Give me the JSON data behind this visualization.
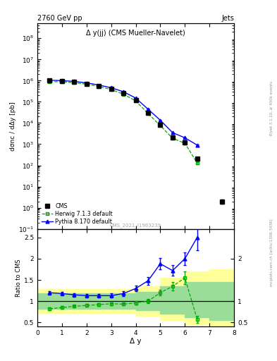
{
  "title_left": "2760 GeV pp",
  "title_right": "Jets",
  "plot_title": "Δ y(јј) (CMS Mueller-Navelet)",
  "xlabel": "Δ y",
  "ylabel_top": "dσnc / dΔy [pb]",
  "ylabel_bot": "Ratio to CMS",
  "watermark": "CMS_2021_I1963239",
  "rivet_text": "Rivet 3.1.10, ≥ 400k events",
  "arxiv_text": "mcplots.cern.ch [arXiv:1306.3436]",
  "cms_x": [
    0.5,
    1.0,
    1.5,
    2.0,
    2.5,
    3.0,
    3.5,
    4.0,
    4.5,
    5.0,
    5.5,
    6.0,
    6.5,
    7.5
  ],
  "cms_y": [
    1000000.0,
    950000.0,
    850000.0,
    700000.0,
    550000.0,
    400000.0,
    250000.0,
    120000.0,
    30000.0,
    8000.0,
    2000.0,
    1200.0,
    200.0,
    2.0
  ],
  "cms_yerr": [
    50000.0,
    40000.0,
    35000.0,
    30000.0,
    25000.0,
    20000.0,
    15000.0,
    8000.0,
    2000.0,
    500.0,
    150.0,
    100.0,
    20.0,
    0.5
  ],
  "herwig_x": [
    0.5,
    1.0,
    1.5,
    2.0,
    2.5,
    3.0,
    3.5,
    4.0,
    4.5,
    5.0,
    5.5,
    6.0,
    6.5
  ],
  "herwig_y": [
    900000.0,
    880000.0,
    800000.0,
    680000.0,
    530000.0,
    380000.0,
    230000.0,
    110000.0,
    28000.0,
    7500.0,
    1900.0,
    1100.0,
    130.0
  ],
  "herwig_yerr": [
    40000.0,
    35000.0,
    30000.0,
    25000.0,
    20000.0,
    15000.0,
    10000.0,
    6000.0,
    1500.0,
    400.0,
    100.0,
    80.0,
    15.0
  ],
  "pythia_x": [
    0.5,
    1.0,
    1.5,
    2.0,
    2.5,
    3.0,
    3.5,
    4.0,
    4.5,
    5.0,
    5.5,
    6.0,
    6.5
  ],
  "pythia_y": [
    1050000.0,
    1000000.0,
    920000.0,
    780000.0,
    620000.0,
    460000.0,
    300000.0,
    150000.0,
    45000.0,
    13500.0,
    3500.0,
    2000.0,
    900.0
  ],
  "pythia_yerr": [
    40000.0,
    35000.0,
    30000.0,
    25000.0,
    20000.0,
    15000.0,
    10000.0,
    7000.0,
    2000.0,
    600.0,
    150.0,
    100.0,
    50.0
  ],
  "ratio_herwig_x": [
    0.5,
    1.0,
    1.5,
    2.0,
    2.5,
    3.0,
    3.5,
    4.0,
    4.5,
    5.0,
    5.5,
    6.0,
    6.5
  ],
  "ratio_herwig_y": [
    0.82,
    0.85,
    0.88,
    0.9,
    0.92,
    0.94,
    0.93,
    0.96,
    1.0,
    1.2,
    1.35,
    1.55,
    0.57
  ],
  "ratio_herwig_yerr": [
    0.03,
    0.03,
    0.03,
    0.03,
    0.03,
    0.03,
    0.03,
    0.04,
    0.05,
    0.07,
    0.1,
    0.15,
    0.08
  ],
  "ratio_pythia_x": [
    0.5,
    1.0,
    1.5,
    2.0,
    2.5,
    3.0,
    3.5,
    4.0,
    4.5,
    5.0,
    5.5,
    6.0,
    6.5
  ],
  "ratio_pythia_y": [
    1.2,
    1.18,
    1.15,
    1.13,
    1.13,
    1.13,
    1.18,
    1.3,
    1.48,
    1.88,
    1.72,
    2.0,
    2.5
  ],
  "ratio_pythia_yerr": [
    0.04,
    0.04,
    0.04,
    0.04,
    0.04,
    0.05,
    0.06,
    0.07,
    0.09,
    0.13,
    0.12,
    0.15,
    0.3
  ],
  "band_yellow_x": [
    0,
    1,
    2,
    3,
    4,
    5,
    6,
    7,
    8
  ],
  "band_yellow_lo": [
    0.72,
    0.72,
    0.72,
    0.72,
    0.65,
    0.55,
    0.45,
    0.38,
    0.38
  ],
  "band_yellow_hi": [
    1.28,
    1.28,
    1.28,
    1.28,
    1.35,
    1.55,
    1.7,
    1.75,
    1.75
  ],
  "band_green_x": [
    0,
    1,
    2,
    3,
    4,
    5,
    6,
    7,
    8
  ],
  "band_green_lo": [
    0.82,
    0.82,
    0.82,
    0.82,
    0.78,
    0.7,
    0.62,
    0.55,
    0.55
  ],
  "band_green_hi": [
    1.18,
    1.18,
    1.18,
    1.18,
    1.22,
    1.35,
    1.45,
    1.45,
    1.45
  ],
  "cms_color": "black",
  "herwig_color": "#00aa00",
  "pythia_color": "blue",
  "yellow_color": "#ffff99",
  "green_color": "#99dd99"
}
